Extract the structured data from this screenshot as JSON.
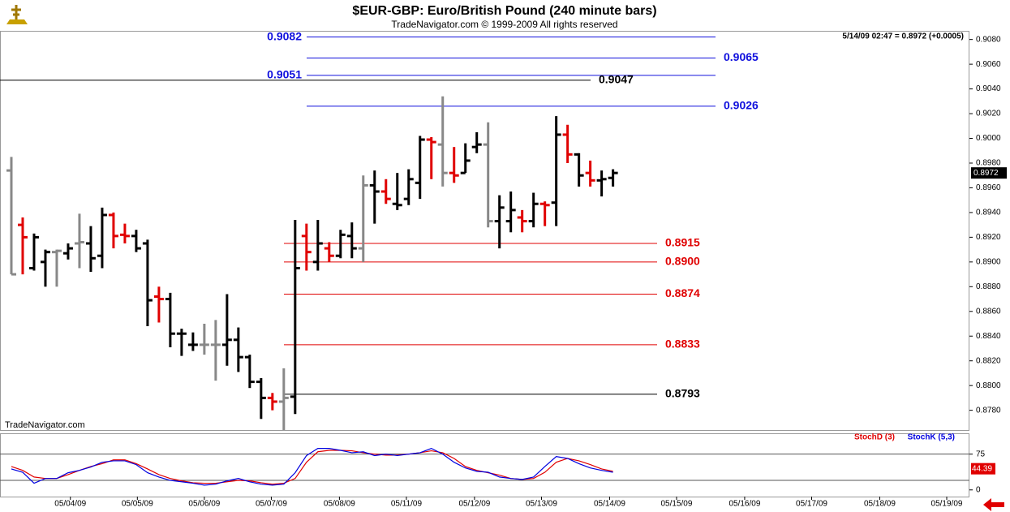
{
  "header": {
    "title": "$EUR-GBP:  Euro/British Pound  (240 minute bars)",
    "subtitle": "TradeNavigator.com © 1999-2009 All rights reserved",
    "watermark": "TradeNavigator.com"
  },
  "chart_data": [
    {
      "type": "ohlc",
      "info": "5/14/09 02:47 = 0.8972 (+0.0005)",
      "open": [
        0.8974,
        0.893,
        0.8895,
        0.89,
        0.8908,
        0.8907,
        0.8915,
        0.8915,
        0.8905,
        0.8938,
        0.8922,
        0.8921,
        0.8915,
        0.8872,
        0.887,
        0.8842,
        0.8833,
        0.8833,
        0.8833,
        0.8833,
        0.8837,
        0.8823,
        0.8803,
        0.879,
        0.8787,
        0.8791,
        0.8921,
        0.89,
        0.8911,
        0.8905,
        0.8921,
        0.8911,
        0.8962,
        0.8957,
        0.8947,
        0.8951,
        0.8964,
        0.8999,
        0.8995,
        0.8972,
        0.8972,
        0.8993,
        0.8995,
        0.8933,
        0.8933,
        0.8936,
        0.8933,
        0.8947,
        0.8948,
        0.9003,
        0.8987,
        0.8972,
        0.8966,
        0.8968
      ],
      "high": [
        0.8985,
        0.8936,
        0.8923,
        0.891,
        0.891,
        0.8915,
        0.8939,
        0.8929,
        0.8944,
        0.894,
        0.8931,
        0.8926,
        0.8918,
        0.888,
        0.8875,
        0.8846,
        0.8843,
        0.885,
        0.8853,
        0.8874,
        0.8847,
        0.8825,
        0.8806,
        0.8794,
        0.8814,
        0.8934,
        0.8931,
        0.8934,
        0.8916,
        0.8926,
        0.8932,
        0.897,
        0.8974,
        0.8967,
        0.8972,
        0.8975,
        0.9002,
        0.9001,
        0.9034,
        0.8993,
        0.8996,
        0.9005,
        0.9013,
        0.8954,
        0.8957,
        0.8942,
        0.8956,
        0.8949,
        0.9018,
        0.9011,
        0.8988,
        0.8982,
        0.8974,
        0.8975
      ],
      "low": [
        0.889,
        0.889,
        0.8893,
        0.888,
        0.888,
        0.8902,
        0.8895,
        0.8892,
        0.8895,
        0.8911,
        0.8915,
        0.8908,
        0.8848,
        0.8851,
        0.8831,
        0.8824,
        0.8828,
        0.8825,
        0.8804,
        0.8816,
        0.8811,
        0.8798,
        0.8773,
        0.878,
        0.8764,
        0.8777,
        0.8893,
        0.8893,
        0.89,
        0.8903,
        0.8903,
        0.89,
        0.8931,
        0.8947,
        0.8942,
        0.8946,
        0.8951,
        0.8967,
        0.8961,
        0.8964,
        0.8972,
        0.8988,
        0.8928,
        0.8911,
        0.8924,
        0.8924,
        0.8928,
        0.8929,
        0.8929,
        0.898,
        0.8961,
        0.8961,
        0.8953,
        0.8961
      ],
      "close": [
        0.889,
        0.892,
        0.892,
        0.8908,
        0.8909,
        0.8911,
        0.8916,
        0.8903,
        0.8938,
        0.8921,
        0.8921,
        0.8911,
        0.8869,
        0.887,
        0.8842,
        0.8842,
        0.8833,
        0.8833,
        0.8833,
        0.8837,
        0.8823,
        0.8803,
        0.879,
        0.8787,
        0.879,
        0.8895,
        0.8908,
        0.8915,
        0.8905,
        0.8922,
        0.8911,
        0.8962,
        0.8957,
        0.8951,
        0.8946,
        0.8967,
        0.8999,
        0.8997,
        0.8972,
        0.897,
        0.8982,
        0.8995,
        0.8933,
        0.8944,
        0.8942,
        0.8933,
        0.8947,
        0.8946,
        0.9003,
        0.8987,
        0.897,
        0.8966,
        0.8967,
        0.8972
      ],
      "colors": [
        "#888888",
        "#e00000",
        "#000000",
        "#000000",
        "#888888",
        "#000000",
        "#888888",
        "#000000",
        "#000000",
        "#e00000",
        "#e00000",
        "#000000",
        "#000000",
        "#e00000",
        "#000000",
        "#000000",
        "#000000",
        "#888888",
        "#888888",
        "#000000",
        "#000000",
        "#000000",
        "#000000",
        "#e00000",
        "#888888",
        "#000000",
        "#e00000",
        "#000000",
        "#e00000",
        "#000000",
        "#000000",
        "#888888",
        "#000000",
        "#e00000",
        "#000000",
        "#000000",
        "#000000",
        "#e00000",
        "#888888",
        "#e00000",
        "#000000",
        "#000000",
        "#888888",
        "#000000",
        "#000000",
        "#e00000",
        "#000000",
        "#e00000",
        "#000000",
        "#e00000",
        "#000000",
        "#e00000",
        "#000000",
        "#000000"
      ],
      "xlim": [
        -1,
        84.4
      ],
      "ylim": [
        0.8764,
        0.9087
      ],
      "yticks": [
        {
          "value": 0.878,
          "label": "0.8780"
        },
        {
          "value": 0.88,
          "label": "0.8800"
        },
        {
          "value": 0.882,
          "label": "0.8820"
        },
        {
          "value": 0.884,
          "label": "0.8840"
        },
        {
          "value": 0.886,
          "label": "0.8860"
        },
        {
          "value": 0.888,
          "label": "0.8880"
        },
        {
          "value": 0.89,
          "label": "0.8900"
        },
        {
          "value": 0.892,
          "label": "0.8920"
        },
        {
          "value": 0.894,
          "label": "0.8940"
        },
        {
          "value": 0.896,
          "label": "0.8960"
        },
        {
          "value": 0.898,
          "label": "0.8980"
        },
        {
          "value": 0.9,
          "label": "0.9000"
        },
        {
          "value": 0.902,
          "label": "0.9020"
        },
        {
          "value": 0.904,
          "label": "0.9040"
        },
        {
          "value": 0.906,
          "label": "0.9060"
        },
        {
          "value": 0.908,
          "label": "0.9080"
        }
      ],
      "last_price": {
        "value": 0.8972,
        "label": "0.8972"
      },
      "levels": [
        {
          "value": 0.9082,
          "label": "0.9082",
          "color": "#1010dd"
        },
        {
          "value": 0.9065,
          "label": "0.9065",
          "color": "#1010dd"
        },
        {
          "value": 0.9051,
          "label": "0.9051",
          "color": "#1010dd"
        },
        {
          "value": 0.9047,
          "label": "0.9047",
          "color": "#000000"
        },
        {
          "value": 0.9026,
          "label": "0.9026",
          "color": "#1010dd"
        },
        {
          "value": 0.8915,
          "label": "0.8915",
          "color": "#e00000"
        },
        {
          "value": 0.89,
          "label": "0.8900",
          "color": "#e00000"
        },
        {
          "value": 0.8874,
          "label": "0.8874",
          "color": "#e00000"
        },
        {
          "value": 0.8833,
          "label": "0.8833",
          "color": "#e00000"
        },
        {
          "value": 0.8793,
          "label": "0.8793",
          "color": "#000000"
        }
      ]
    },
    {
      "type": "line",
      "series": [
        {
          "name": "StochD (3)",
          "color": "#e00000",
          "values": [
            49,
            41,
            27,
            24,
            24,
            32,
            41,
            49,
            55,
            63,
            63,
            55,
            44,
            32,
            24,
            19,
            15,
            14,
            14,
            17,
            20,
            19,
            15,
            12,
            14,
            24,
            58,
            80,
            83,
            83,
            82,
            78,
            75,
            73,
            73,
            75,
            78,
            82,
            78,
            66,
            49,
            41,
            36,
            31,
            24,
            22,
            24,
            37,
            58,
            66,
            61,
            53,
            44,
            39
          ]
        },
        {
          "name": "StochK (5,3)",
          "color": "#0000e0",
          "values": [
            44,
            37,
            14,
            24,
            24,
            36,
            41,
            48,
            58,
            61,
            61,
            53,
            36,
            27,
            20,
            17,
            14,
            10,
            12,
            19,
            24,
            17,
            12,
            10,
            12,
            36,
            72,
            87,
            87,
            83,
            78,
            80,
            72,
            75,
            72,
            75,
            78,
            87,
            75,
            58,
            46,
            39,
            37,
            27,
            24,
            22,
            27,
            49,
            70,
            66,
            55,
            46,
            41,
            37
          ]
        }
      ],
      "last_value": 44.39,
      "xlim": [
        -1,
        84.4
      ],
      "ylim": [
        -14,
        117
      ],
      "yticks": [
        0,
        75
      ],
      "levels": [
        75,
        20
      ],
      "xticks": [
        {
          "value": 5.2,
          "label": "05/04/09"
        },
        {
          "value": 11.1,
          "label": "05/05/09"
        },
        {
          "value": 17.0,
          "label": "05/06/09"
        },
        {
          "value": 22.9,
          "label": "05/07/09"
        },
        {
          "value": 28.9,
          "label": "05/08/09"
        },
        {
          "value": 34.8,
          "label": "05/11/09"
        },
        {
          "value": 40.8,
          "label": "05/12/09"
        },
        {
          "value": 46.7,
          "label": "05/13/09"
        },
        {
          "value": 52.7,
          "label": "05/14/09"
        },
        {
          "value": 58.6,
          "label": "05/15/09"
        },
        {
          "value": 64.6,
          "label": "05/16/09"
        },
        {
          "value": 70.5,
          "label": "05/17/09"
        },
        {
          "value": 76.5,
          "label": "05/18/09"
        },
        {
          "value": 82.4,
          "label": "05/19/09"
        }
      ]
    }
  ]
}
